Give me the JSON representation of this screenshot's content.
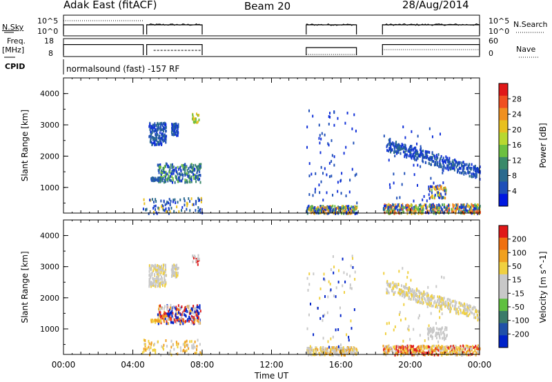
{
  "header": {
    "station": "Adak East (fitACF)",
    "beam": "Beam 20",
    "date": "28/Aug/2014"
  },
  "panel_labels": {
    "nsky": "N.Sky",
    "nsky_tick_hi": "10^5",
    "nsky_tick_lo": "10^0",
    "nsearch": "N.Search",
    "nsearch_tick_hi": "10^5",
    "nsearch_tick_lo": "10^0",
    "freq": "Freq.",
    "freq_unit": "[MHz]",
    "freq_tick_hi": "18",
    "freq_tick_lo": "8",
    "nave": "Nave",
    "nave_tick_hi": "60",
    "nave_tick_lo": "0",
    "cpid": "CPID",
    "cpid_text": "normalsound (fast) -157 RF"
  },
  "chart_data": [
    {
      "type": "line",
      "name": "N.Sky / N.Search",
      "ytick_labels": [
        "10^0",
        "10^5"
      ],
      "segments_hours": [
        [
          0.0,
          4.6
        ],
        [
          4.8,
          8.0
        ],
        [
          14.0,
          16.9
        ],
        [
          18.4,
          24.0
        ]
      ]
    },
    {
      "type": "line",
      "name": "Freq / Nave",
      "ytick_labels_left": [
        "8",
        "18"
      ],
      "ytick_labels_right": [
        "0",
        "60"
      ],
      "freq_level_MHz": [
        [
          0.0,
          4.6,
          15.0
        ],
        [
          4.8,
          8.0,
          15.0
        ],
        [
          14.0,
          16.9,
          13.0
        ],
        [
          18.4,
          24.0,
          15.0
        ]
      ]
    },
    {
      "type": "heatmap",
      "title": "Power",
      "ylabel": "Slant Range [km]",
      "ylim": [
        180,
        4500
      ],
      "yticks": [
        1000,
        2000,
        3000,
        4000
      ],
      "colorbar_label": "Power [dB]",
      "colorbar_ticks": [
        4,
        8,
        12,
        16,
        20,
        24,
        28
      ],
      "colorbar_colors": [
        "#0018e0",
        "#1e4fb8",
        "#2a6a8e",
        "#3a8a6a",
        "#6cc040",
        "#b8d830",
        "#e8c020",
        "#f09020",
        "#f05020",
        "#e01818"
      ]
    },
    {
      "type": "heatmap",
      "title": "Velocity",
      "ylabel": "Slant Range [km]",
      "ylim": [
        180,
        4500
      ],
      "yticks": [
        1000,
        2000,
        3000,
        4000
      ],
      "colorbar_label": "Velocity [m s^-1]",
      "colorbar_ticks": [
        200,
        100,
        50,
        15,
        -15,
        -50,
        -100,
        -200
      ],
      "colorbar_colors": [
        "#0022c8",
        "#2050a8",
        "#3a7a6a",
        "#60c040",
        "#c8c8c8",
        "#c8c8c8",
        "#f0d040",
        "#f0a020",
        "#f07010",
        "#e01818"
      ],
      "xlabel": "Time UT",
      "xtick_labels": [
        "00:00",
        "04:00",
        "08:00",
        "12:00",
        "16:00",
        "20:00",
        "00:00"
      ]
    }
  ]
}
